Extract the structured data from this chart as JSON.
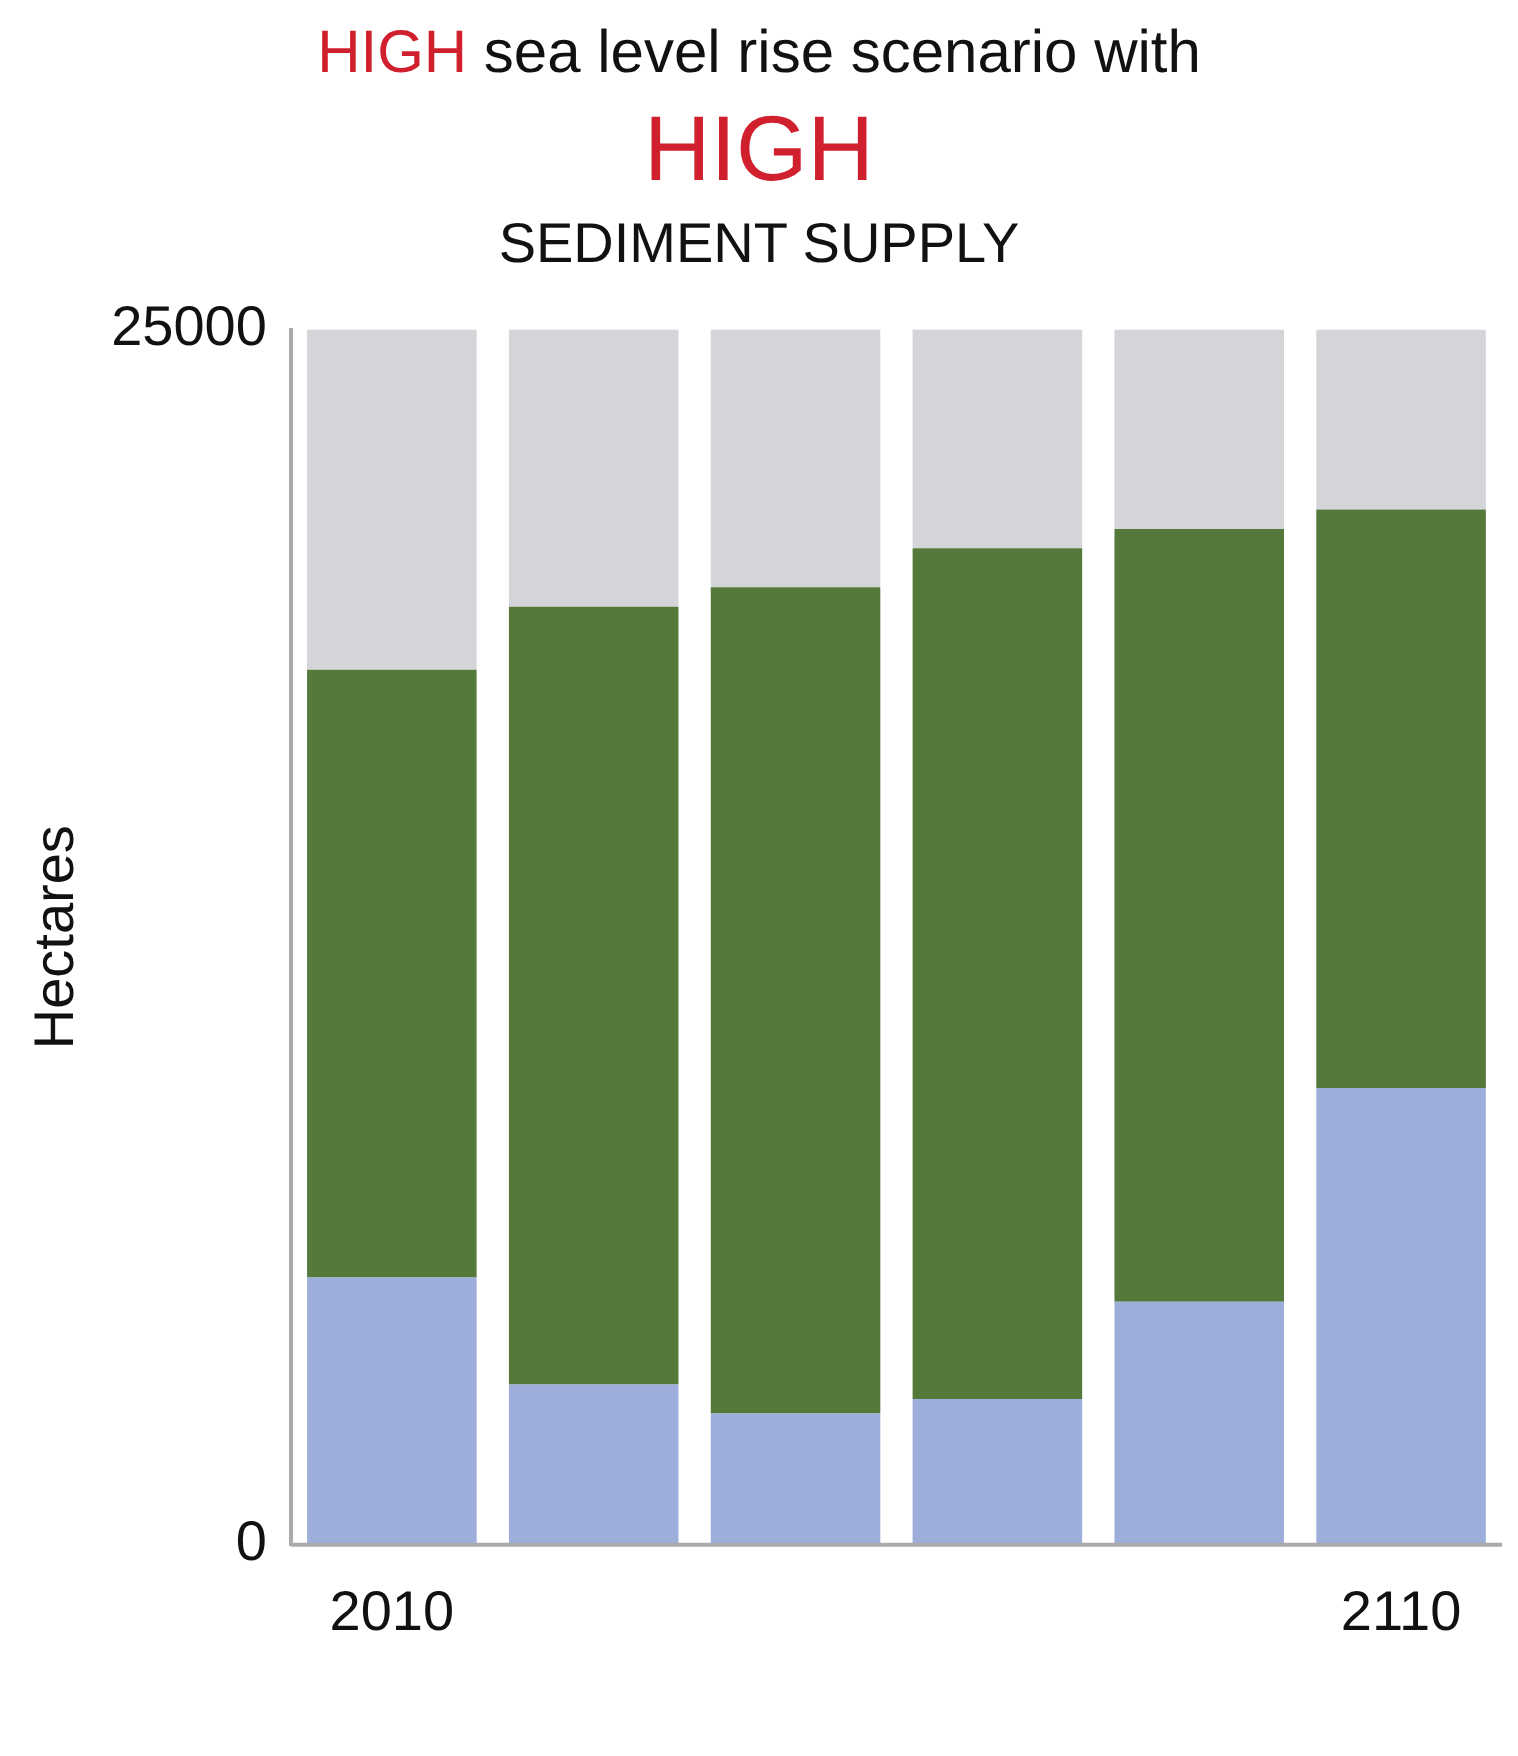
{
  "chart_data": {
    "type": "bar",
    "title": "HIGH sea level rise scenario with HIGH",
    "subtitle": "SEDIMENT SUPPLY",
    "ylabel": "Hectares",
    "categories": [
      "2010",
      null,
      null,
      null,
      null,
      "2110"
    ],
    "stacked": true,
    "series": [
      {
        "color": "#9daedb",
        "values": [
          5500,
          3300,
          2700,
          3000,
          5000,
          9400
        ]
      },
      {
        "color": "#55793a",
        "values": [
          12500,
          16000,
          17000,
          17500,
          15900,
          11900
        ]
      },
      {
        "color": "#d4d5d9",
        "values": [
          7000,
          5700,
          5300,
          4500,
          4100,
          3700
        ]
      }
    ],
    "ylim": [
      0,
      25000
    ],
    "yticks": [
      0,
      25000
    ],
    "grid": false,
    "legend": false
  }
}
